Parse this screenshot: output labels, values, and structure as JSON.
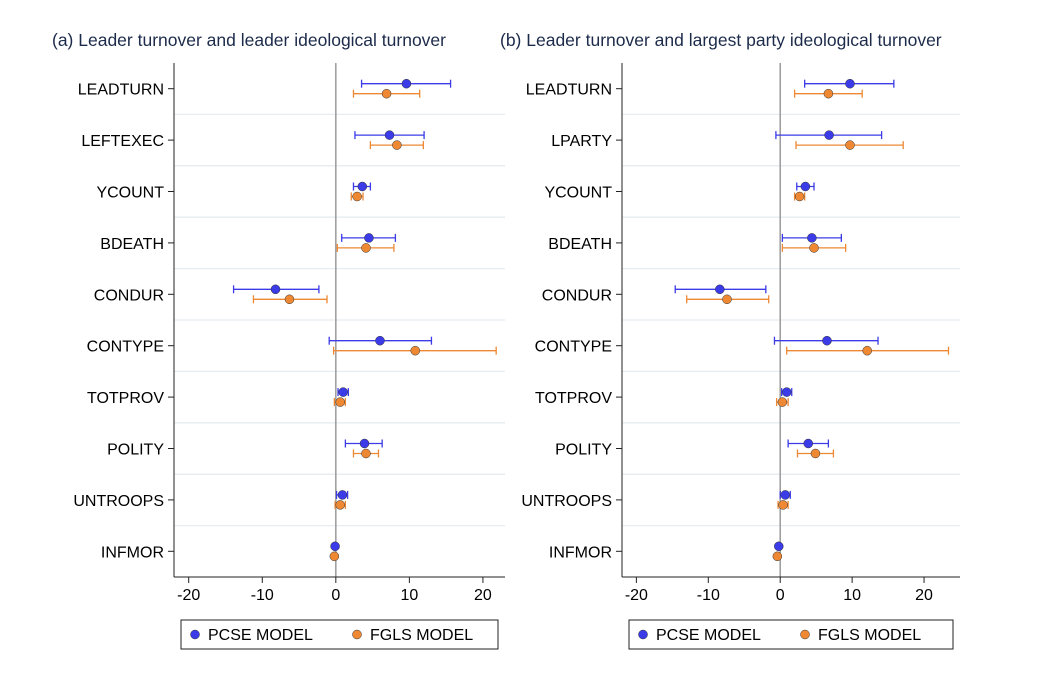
{
  "chart_data": [
    {
      "type": "scatter",
      "subtype": "coefficient-plot",
      "title": "(a) Leader turnover and leader ideological turnover",
      "xlim": [
        -22,
        23
      ],
      "xticks": [
        -20,
        -10,
        0,
        10,
        20
      ],
      "grid": true,
      "legend_position": "bottom-center",
      "variables": [
        "LEADTURN",
        "LEFTEXEC",
        "YCOUNT",
        "BDEATH",
        "CONDUR",
        "CONTYPE",
        "TOTPROV",
        "POLITY",
        "UNTROOPS",
        "INFMOR"
      ],
      "series": [
        {
          "name": "PCSE MODEL",
          "color": "#3b3be8",
          "estimates": [
            9.6,
            7.3,
            3.6,
            4.5,
            -8.2,
            6.0,
            1.0,
            3.9,
            0.9,
            -0.1
          ],
          "ci_low": [
            3.5,
            2.6,
            2.4,
            0.8,
            -13.9,
            -0.9,
            0.3,
            1.3,
            0.1,
            -0.1
          ],
          "ci_high": [
            15.6,
            12.0,
            4.7,
            8.1,
            -2.3,
            13.0,
            1.7,
            6.3,
            1.6,
            -0.1
          ]
        },
        {
          "name": "FGLS MODEL",
          "color": "#ee8833",
          "estimates": [
            6.9,
            8.3,
            2.9,
            4.1,
            -6.3,
            10.8,
            0.6,
            4.1,
            0.6,
            -0.2
          ],
          "ci_low": [
            2.4,
            4.7,
            2.1,
            0.2,
            -11.2,
            -0.3,
            -0.2,
            2.4,
            -0.1,
            -0.2
          ],
          "ci_high": [
            11.4,
            11.9,
            3.7,
            7.9,
            -1.2,
            21.8,
            1.3,
            5.8,
            1.3,
            -0.2
          ]
        }
      ]
    },
    {
      "type": "scatter",
      "subtype": "coefficient-plot",
      "title": "(b) Leader turnover and largest party ideological turnover",
      "xlim": [
        -22,
        25
      ],
      "xticks": [
        -20,
        -10,
        0,
        10,
        20
      ],
      "grid": true,
      "legend_position": "bottom-center",
      "variables": [
        "LEADTURN",
        "LPARTY",
        "YCOUNT",
        "BDEATH",
        "CONDUR",
        "CONTYPE",
        "TOTPROV",
        "POLITY",
        "UNTROOPS",
        "INFMOR"
      ],
      "series": [
        {
          "name": "PCSE MODEL",
          "color": "#3b3be8",
          "estimates": [
            9.7,
            6.8,
            3.5,
            4.4,
            -8.4,
            6.5,
            0.9,
            3.9,
            0.7,
            -0.2
          ],
          "ci_low": [
            3.4,
            -0.6,
            2.3,
            0.3,
            -14.6,
            -0.8,
            0.2,
            1.1,
            0.0,
            -0.2
          ],
          "ci_high": [
            15.8,
            14.1,
            4.7,
            8.5,
            -2.0,
            13.6,
            1.6,
            6.7,
            1.4,
            -0.2
          ]
        },
        {
          "name": "FGLS MODEL",
          "color": "#ee8833",
          "estimates": [
            6.7,
            9.7,
            2.7,
            4.7,
            -7.4,
            12.1,
            0.3,
            4.9,
            0.4,
            -0.4
          ],
          "ci_low": [
            2.0,
            2.2,
            2.0,
            0.3,
            -13.0,
            0.9,
            -0.5,
            2.4,
            -0.3,
            -0.4
          ],
          "ci_high": [
            11.4,
            17.1,
            3.4,
            9.1,
            -1.6,
            23.4,
            1.1,
            7.4,
            1.1,
            -0.4
          ]
        }
      ]
    }
  ]
}
